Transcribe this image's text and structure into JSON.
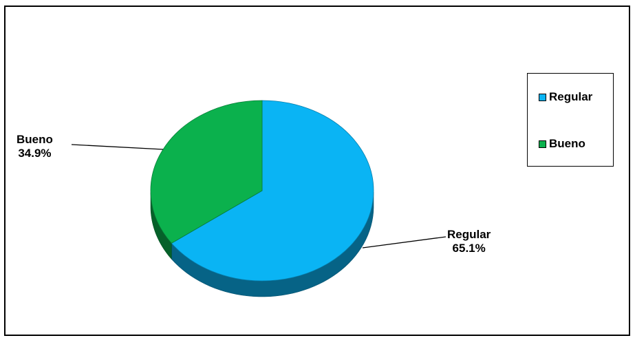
{
  "chart_data": {
    "type": "pie",
    "categories": [
      "Regular",
      "Bueno"
    ],
    "values": [
      65.1,
      34.9
    ],
    "labels": {
      "regular_name": "Regular",
      "regular_pct": "65.1%",
      "bueno_name": "Bueno",
      "bueno_pct": "34.9%"
    },
    "colors": {
      "Regular": "#0ab4f4",
      "Bueno": "#0bb14d"
    },
    "legend": {
      "position": "right",
      "items": [
        "Regular",
        "Bueno"
      ]
    },
    "style": "3d-tilted"
  }
}
